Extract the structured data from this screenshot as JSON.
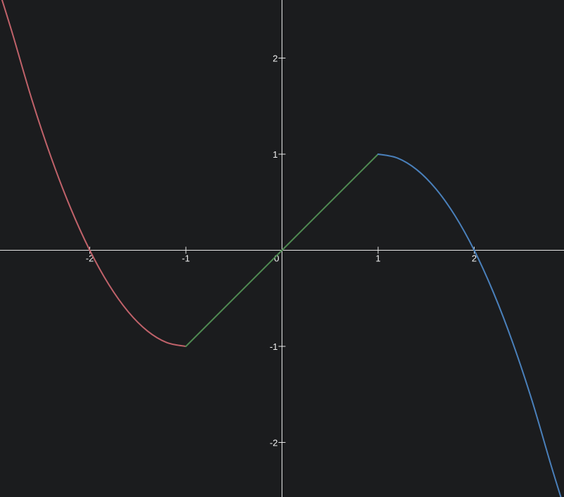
{
  "chart_data": {
    "type": "line",
    "title": "",
    "xlabel": "",
    "ylabel": "",
    "xlim": [
      -2.93,
      2.93
    ],
    "ylim": [
      -2.6,
      2.6
    ],
    "grid": false,
    "legend": "none",
    "x_ticks": [
      -2,
      -1,
      1,
      2
    ],
    "y_ticks": [
      2,
      1,
      -1,
      -2
    ],
    "origin_label": "0",
    "series": [
      {
        "color": "#c0626a",
        "x": [
          -2.93,
          -2.8,
          -2.6,
          -2.4,
          -2.2,
          -2.0,
          -1.8,
          -1.6,
          -1.4,
          -1.2,
          -1.0
        ],
        "y": [
          2.66,
          2.24,
          1.56,
          0.96,
          0.44,
          0.0,
          -0.36,
          -0.64,
          -0.84,
          -0.96,
          -1.0
        ]
      },
      {
        "color": "#4f8a52",
        "x": [
          -1.0,
          0.0,
          1.0
        ],
        "y": [
          -1.0,
          0.0,
          1.0
        ]
      },
      {
        "color": "#4a80bb",
        "x": [
          1.0,
          1.2,
          1.4,
          1.6,
          1.8,
          2.0,
          2.2,
          2.4,
          2.6,
          2.8,
          2.93
        ],
        "y": [
          1.0,
          0.96,
          0.84,
          0.64,
          0.36,
          0.0,
          -0.44,
          -0.96,
          -1.56,
          -2.24,
          -2.66
        ]
      }
    ]
  }
}
